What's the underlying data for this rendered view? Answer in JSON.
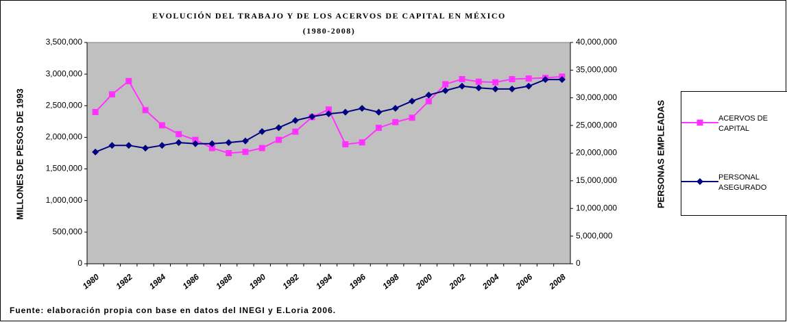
{
  "chart_data": {
    "type": "line",
    "title": "EVOLUCIÓN DEL TRABAJO Y DE LOS ACERVOS DE CAPITAL EN MÉXICO",
    "subtitle": "(1980-2008)",
    "y_label": "MILLONES DE PESOS DE 1993",
    "y2_label": "PERSONAS EMPLEADAS",
    "source": "Fuente: elaboración propia con base en datos del INEGI y E.Loria 2006.",
    "categories": [
      "1980",
      null,
      "1982",
      null,
      "1984",
      null,
      "1986",
      null,
      "1988",
      null,
      "1990",
      null,
      "1992",
      null,
      "1994",
      null,
      "1996",
      null,
      "1998",
      null,
      "2000",
      null,
      "2002",
      null,
      "2004",
      null,
      "2006",
      null,
      "2008"
    ],
    "series": [
      {
        "name": "ACERVOS DE CAPITAL",
        "color": "#ff33ff",
        "marker": "square",
        "values": [
          2400000,
          2680000,
          2890000,
          2430000,
          2190000,
          2050000,
          1960000,
          1830000,
          1750000,
          1770000,
          1830000,
          1960000,
          2090000,
          2320000,
          2440000,
          1890000,
          1920000,
          2150000,
          2240000,
          2310000,
          2570000,
          2840000,
          2920000,
          2880000,
          2870000,
          2920000,
          2930000,
          2940000,
          2960000
        ]
      },
      {
        "name": "PERSONAL ASEGURADO",
        "color": "#000080",
        "marker": "diamond",
        "axis": "y2",
        "values": [
          20200000,
          21400000,
          21400000,
          20900000,
          21400000,
          21900000,
          21700000,
          21700000,
          21900000,
          22200000,
          23900000,
          24600000,
          25900000,
          26600000,
          27100000,
          27400000,
          28100000,
          27400000,
          28100000,
          29400000,
          30500000,
          31300000,
          32100000,
          31800000,
          31600000,
          31600000,
          32100000,
          33300000,
          33300000
        ]
      }
    ],
    "ylim": [
      0,
      3500000
    ],
    "yticks": [
      0,
      {
        "value": 500000,
        "label": "500,000"
      },
      {
        "value": 1000000,
        "label": "1,000,000"
      },
      {
        "value": 1500000,
        "label": "1,500,000"
      },
      {
        "value": 2000000,
        "label": "2,000,000"
      },
      {
        "value": 2500000,
        "label": "2,500,000"
      },
      {
        "value": 3000000,
        "label": "3,000,000"
      },
      {
        "value": 3500000,
        "label": "3,500,000"
      }
    ],
    "y2lim": [
      0,
      40000000
    ],
    "y2ticks": [
      0,
      {
        "value": 5000000,
        "label": "5,000,000"
      },
      {
        "value": 10000000,
        "label": "10,000,000"
      },
      {
        "value": 15000000,
        "label": "15,000,000"
      },
      {
        "value": 20000000,
        "label": "20,000,000"
      },
      {
        "value": 25000000,
        "label": "25,000,000"
      },
      {
        "value": 30000000,
        "label": "30,000,000"
      },
      {
        "value": 35000000,
        "label": "35,000,000"
      },
      {
        "value": 40000000,
        "label": "40,000,000"
      }
    ],
    "grid": false,
    "background": "#c0c0c0",
    "legend": "right"
  }
}
